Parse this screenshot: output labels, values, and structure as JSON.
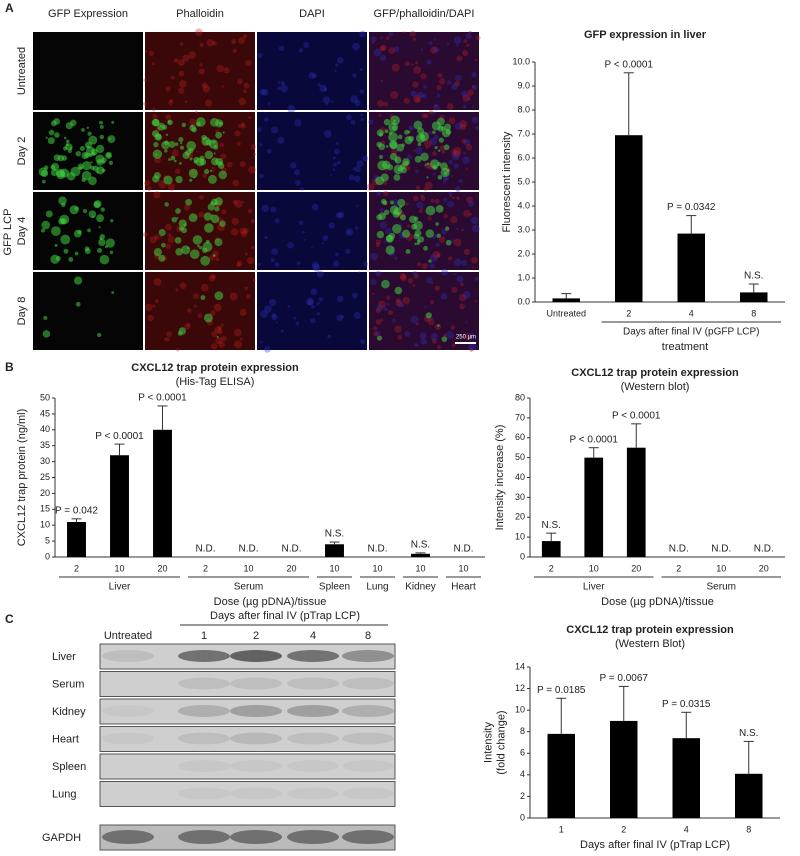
{
  "figure": {
    "panel_labels": [
      "A",
      "B",
      "C"
    ],
    "microscopy": {
      "columns": [
        "GFP Expression",
        "Phalloidin",
        "DAPI",
        "GFP/phalloidin/DAPI"
      ],
      "rows": [
        "Untreated",
        "Day 2",
        "Day 4",
        "Day 8"
      ],
      "group_label": "GFP LCP",
      "scale_bar": "250 µm"
    },
    "blot": {
      "header": "Days after final IV (pTrap LCP)",
      "columns": [
        "Untreated",
        "1",
        "2",
        "4",
        "8"
      ],
      "rows": [
        "Liver",
        "Serum",
        "Kidney",
        "Heart",
        "Spleen",
        "Lung"
      ],
      "loading_control": "GAPDH"
    }
  },
  "chart_data": [
    {
      "type": "bar",
      "title": [
        "GFP expression in liver"
      ],
      "ylabel": [
        "Fluorescent intensity"
      ],
      "xlabel": "treatment",
      "categories": [
        "Untreated",
        "2",
        "4",
        "8"
      ],
      "values": [
        0.15,
        6.95,
        2.85,
        0.4
      ],
      "errors": [
        0.2,
        2.6,
        0.75,
        0.35
      ],
      "annotations": [
        null,
        "P < 0.0001",
        "P = 0.0342",
        "N.S."
      ],
      "groups": [
        {
          "label": "Days after final IV (pGFP LCP)",
          "members": [
            1,
            2,
            3
          ]
        }
      ],
      "color": "#000000",
      "ylim": [
        0,
        10
      ],
      "yticks": [
        {
          "value": 0,
          "label": "0.0"
        },
        {
          "value": 1,
          "label": "1.0"
        },
        {
          "value": 2,
          "label": "2.0"
        },
        {
          "value": 3,
          "label": "3.0"
        },
        {
          "value": 4,
          "label": "4.0"
        },
        {
          "value": 5,
          "label": "5.0"
        },
        {
          "value": 6,
          "label": "6.0"
        },
        {
          "value": 7,
          "label": "7.0"
        },
        {
          "value": 8,
          "label": "8.0"
        },
        {
          "value": 9,
          "label": "9.0"
        },
        {
          "value": 10,
          "label": "10.0"
        }
      ]
    },
    {
      "type": "bar",
      "title": [
        "CXCL12 trap protein expression",
        "(His-Tag ELISA)"
      ],
      "ylabel": [
        "CXCL12 trap protein (ng/ml)"
      ],
      "xlabel": "Dose (µg pDNA)/tissue",
      "categories": [
        "2",
        "10",
        "20",
        "2",
        "10",
        "20",
        "10",
        "10",
        "10",
        "10"
      ],
      "values": [
        11,
        32,
        40,
        null,
        null,
        null,
        4,
        null,
        1,
        null
      ],
      "errors": [
        1,
        3.5,
        7.5,
        null,
        null,
        null,
        0.7,
        null,
        0.3,
        null
      ],
      "annotations": [
        "P = 0.042",
        "P < 0.0001",
        "P < 0.0001",
        "N.D.",
        "N.D.",
        "N.D.",
        "N.S.",
        "N.D.",
        "N.S.",
        "N.D."
      ],
      "groups": [
        {
          "label": "Liver",
          "members": [
            0,
            1,
            2
          ]
        },
        {
          "label": "Serum",
          "members": [
            3,
            4,
            5
          ]
        },
        {
          "label": "Spleen",
          "members": [
            6
          ]
        },
        {
          "label": "Lung",
          "members": [
            7
          ]
        },
        {
          "label": "Kidney",
          "members": [
            8
          ]
        },
        {
          "label": "Heart",
          "members": [
            9
          ]
        }
      ],
      "color": "#000000",
      "ylim": [
        0,
        50
      ],
      "yticks": [
        0,
        5,
        10,
        15,
        20,
        25,
        30,
        35,
        40,
        45,
        50
      ]
    },
    {
      "type": "bar",
      "title": [
        "CXCL12 trap protein expression",
        "(Western blot)"
      ],
      "ylabel": [
        "Intensity increase (%)"
      ],
      "xlabel": "Dose (µg pDNA)/tissue",
      "categories": [
        "2",
        "10",
        "20",
        "2",
        "10",
        "20"
      ],
      "values": [
        8,
        50,
        55,
        null,
        null,
        null
      ],
      "errors": [
        4,
        5,
        12,
        null,
        null,
        null
      ],
      "annotations": [
        "N.S.",
        "P < 0.0001",
        "P < 0.0001",
        "N.D.",
        "N.D.",
        "N.D."
      ],
      "groups": [
        {
          "label": "Liver",
          "members": [
            0,
            1,
            2
          ]
        },
        {
          "label": "Serum",
          "members": [
            3,
            4,
            5
          ]
        }
      ],
      "color": "#000000",
      "ylim": [
        0,
        80
      ],
      "yticks": [
        0,
        10,
        20,
        30,
        40,
        50,
        60,
        70,
        80
      ]
    },
    {
      "type": "bar",
      "title": [
        "CXCL12 trap protein expression",
        "(Western Blot)"
      ],
      "ylabel": [
        "Intensity",
        "(fold change)"
      ],
      "xlabel": "Days after final IV (pTrap LCP)",
      "categories": [
        "1",
        "2",
        "4",
        "8"
      ],
      "values": [
        7.8,
        9,
        7.4,
        4.1
      ],
      "errors": [
        3.3,
        3.2,
        2.4,
        3.0
      ],
      "annotations": [
        "P = 0.0185",
        "P = 0.0067",
        "P = 0.0315",
        "N.S."
      ],
      "color": "#000000",
      "ylim": [
        0,
        14
      ],
      "yticks": [
        0,
        2,
        4,
        6,
        8,
        10,
        12,
        14
      ]
    }
  ]
}
